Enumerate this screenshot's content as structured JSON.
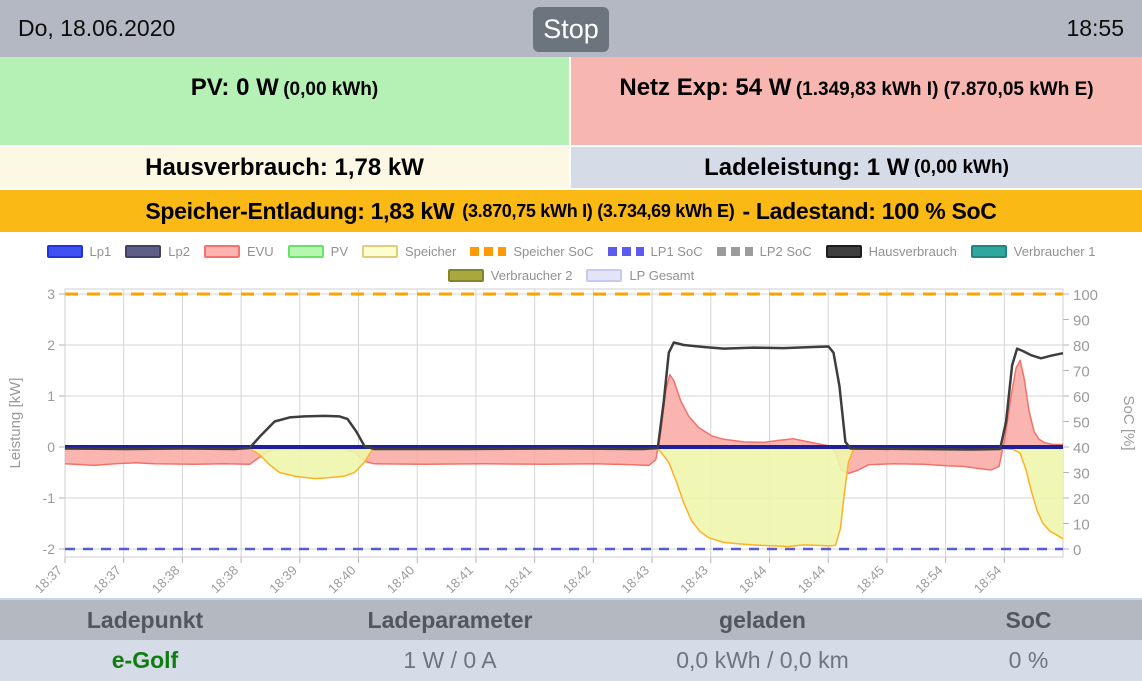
{
  "header": {
    "date": "Do, 18.06.2020",
    "time": "18:55",
    "stop_label": "Stop"
  },
  "panels": {
    "pv": {
      "main": "PV: 0 W",
      "sub": "(0,00 kWh)",
      "bg": "#b5f1b4"
    },
    "netz": {
      "main": "Netz Exp: 54 W",
      "sub": "(1.349,83 kWh I) (7.870,05 kWh E)",
      "bg": "#f8b6b1"
    },
    "hausverbrauch": {
      "main": "Hausverbrauch: 1,78 kW",
      "bg": "#fcf8e3"
    },
    "ladeleistung": {
      "main": "Ladeleistung: 1 W",
      "sub": "(0,00 kWh)",
      "bg": "#d6dbe8"
    },
    "speicher": {
      "main": "Speicher-Entladung: 1,83 kW",
      "sub": "(3.870,75 kWh I) (3.734,69 kWh E)",
      "suffix": "- Ladestand: 100 % SoC",
      "bg": "#fbb916"
    }
  },
  "chart_data": {
    "type": "line",
    "title": "",
    "ylabel_left": "Leistung [kW]",
    "ylabel_right": "SoC [%]",
    "ylim_left": [
      -2,
      3
    ],
    "ylim_right": [
      0,
      100
    ],
    "grid": true,
    "yticks_left": [
      3,
      2,
      1,
      0,
      -1,
      -2
    ],
    "yticks_right": [
      100,
      90,
      80,
      70,
      60,
      50,
      40,
      30,
      20,
      10,
      0
    ],
    "x_labels": [
      "18:37",
      "18:37",
      "18:38",
      "18:38",
      "18:39",
      "18:40",
      "18:40",
      "18:41",
      "18:41",
      "18:42",
      "18:43",
      "18:43",
      "18:44",
      "18:44",
      "18:45",
      "18:54",
      "18:54"
    ],
    "legend_rows": [
      [
        {
          "label": "Lp1",
          "style": "box",
          "fill": "#3f51f3",
          "border": "#2433d9"
        },
        {
          "label": "Lp2",
          "style": "box",
          "fill": "#5d5d86",
          "border": "#404066"
        },
        {
          "label": "EVU",
          "style": "box",
          "fill": "#fdb4ae",
          "border": "#f87171"
        },
        {
          "label": "PV",
          "style": "box",
          "fill": "#b6f6b0",
          "border": "#67e467"
        },
        {
          "label": "Speicher",
          "style": "box",
          "fill": "#fdfdd2",
          "border": "#e3cd7a"
        },
        {
          "label": "Speicher SoC",
          "style": "dash",
          "fill": "#ff9a00"
        },
        {
          "label": "LP1 SoC",
          "style": "dash",
          "fill": "#5b5bf0"
        },
        {
          "label": "LP2 SoC",
          "style": "dash",
          "fill": "#9b9b9b"
        },
        {
          "label": "Hausverbrauch",
          "style": "box",
          "fill": "#3f3f3f",
          "border": "#1e1e1e"
        },
        {
          "label": "Verbraucher 1",
          "style": "box",
          "fill": "#30a79e",
          "border": "#1f877f"
        }
      ],
      [
        {
          "label": "Verbraucher 2",
          "style": "box",
          "fill": "#a8a83e",
          "border": "#83832b"
        },
        {
          "label": "LP Gesamt",
          "style": "box",
          "fill": "#e4e4f9",
          "border": "#c9c9f0"
        }
      ]
    ],
    "series": [
      {
        "name": "Speicher SoC",
        "color": "#ffa300",
        "width": 3,
        "dash": "13 9",
        "points": [
          [
            0,
            3
          ],
          [
            1,
            3
          ]
        ]
      },
      {
        "name": "LP1 SoC",
        "color": "#5a5ad2",
        "width": 2.5,
        "dash": "10 8",
        "points": [
          [
            0,
            -2
          ],
          [
            1,
            -2
          ]
        ]
      },
      {
        "name": "EVU",
        "color": "#f4716b",
        "width": 1.5,
        "fill": "#f9a29c",
        "fillOpacity": 0.8,
        "points": [
          [
            0,
            -0.33
          ],
          [
            0.03,
            -0.36
          ],
          [
            0.05,
            -0.33
          ],
          [
            0.07,
            -0.31
          ],
          [
            0.09,
            -0.33
          ],
          [
            0.13,
            -0.34
          ],
          [
            0.16,
            -0.33
          ],
          [
            0.185,
            -0.34
          ],
          [
            0.195,
            -0.2
          ],
          [
            0.205,
            -0.07
          ],
          [
            0.22,
            -0.04
          ],
          [
            0.25,
            -0.05
          ],
          [
            0.28,
            -0.04
          ],
          [
            0.29,
            -0.1
          ],
          [
            0.3,
            -0.28
          ],
          [
            0.31,
            -0.33
          ],
          [
            0.36,
            -0.34
          ],
          [
            0.42,
            -0.33
          ],
          [
            0.48,
            -0.34
          ],
          [
            0.53,
            -0.33
          ],
          [
            0.57,
            -0.35
          ],
          [
            0.585,
            -0.36
          ],
          [
            0.592,
            -0.25
          ],
          [
            0.597,
            0.3
          ],
          [
            0.602,
            1.1
          ],
          [
            0.606,
            1.42
          ],
          [
            0.61,
            1.3
          ],
          [
            0.617,
            0.9
          ],
          [
            0.625,
            0.6
          ],
          [
            0.635,
            0.38
          ],
          [
            0.648,
            0.22
          ],
          [
            0.66,
            0.15
          ],
          [
            0.68,
            0.1
          ],
          [
            0.7,
            0.09
          ],
          [
            0.715,
            0.13
          ],
          [
            0.73,
            0.16
          ],
          [
            0.74,
            0.12
          ],
          [
            0.755,
            0.06
          ],
          [
            0.766,
            0.02
          ],
          [
            0.772,
            -0.1
          ],
          [
            0.778,
            -0.45
          ],
          [
            0.785,
            -0.52
          ],
          [
            0.795,
            -0.45
          ],
          [
            0.805,
            -0.35
          ],
          [
            0.83,
            -0.33
          ],
          [
            0.86,
            -0.34
          ],
          [
            0.885,
            -0.37
          ],
          [
            0.9,
            -0.38
          ],
          [
            0.915,
            -0.42
          ],
          [
            0.928,
            -0.45
          ],
          [
            0.936,
            -0.38
          ],
          [
            0.942,
            0.2
          ],
          [
            0.948,
            1.0
          ],
          [
            0.953,
            1.55
          ],
          [
            0.957,
            1.7
          ],
          [
            0.961,
            1.35
          ],
          [
            0.966,
            0.7
          ],
          [
            0.971,
            0.3
          ],
          [
            0.976,
            0.15
          ],
          [
            0.982,
            0.08
          ],
          [
            0.99,
            0.05
          ],
          [
            1,
            0.05
          ]
        ]
      },
      {
        "name": "Speicher",
        "color": "#ffb125",
        "width": 1.5,
        "fill": "#eef5ac",
        "fillOpacity": 0.9,
        "points": [
          [
            0,
            -0.02
          ],
          [
            0.05,
            -0.03
          ],
          [
            0.1,
            -0.02
          ],
          [
            0.15,
            -0.03
          ],
          [
            0.185,
            -0.03
          ],
          [
            0.195,
            -0.15
          ],
          [
            0.205,
            -0.35
          ],
          [
            0.215,
            -0.5
          ],
          [
            0.23,
            -0.57
          ],
          [
            0.25,
            -0.62
          ],
          [
            0.265,
            -0.6
          ],
          [
            0.28,
            -0.57
          ],
          [
            0.29,
            -0.5
          ],
          [
            0.3,
            -0.3
          ],
          [
            0.308,
            -0.05
          ],
          [
            0.32,
            -0.02
          ],
          [
            0.4,
            -0.03
          ],
          [
            0.5,
            -0.02
          ],
          [
            0.58,
            -0.03
          ],
          [
            0.595,
            -0.05
          ],
          [
            0.605,
            -0.3
          ],
          [
            0.613,
            -0.7
          ],
          [
            0.62,
            -1.1
          ],
          [
            0.628,
            -1.45
          ],
          [
            0.636,
            -1.65
          ],
          [
            0.645,
            -1.78
          ],
          [
            0.66,
            -1.87
          ],
          [
            0.675,
            -1.9
          ],
          [
            0.69,
            -1.92
          ],
          [
            0.71,
            -1.94
          ],
          [
            0.725,
            -1.95
          ],
          [
            0.74,
            -1.92
          ],
          [
            0.755,
            -1.93
          ],
          [
            0.765,
            -1.94
          ],
          [
            0.772,
            -1.93
          ],
          [
            0.777,
            -1.6
          ],
          [
            0.781,
            -0.9
          ],
          [
            0.785,
            -0.3
          ],
          [
            0.79,
            -0.05
          ],
          [
            0.8,
            -0.02
          ],
          [
            0.85,
            -0.03
          ],
          [
            0.9,
            -0.02
          ],
          [
            0.94,
            -0.03
          ],
          [
            0.95,
            -0.05
          ],
          [
            0.957,
            -0.12
          ],
          [
            0.963,
            -0.45
          ],
          [
            0.968,
            -0.85
          ],
          [
            0.974,
            -1.25
          ],
          [
            0.98,
            -1.5
          ],
          [
            0.987,
            -1.65
          ],
          [
            0.994,
            -1.73
          ],
          [
            1,
            -1.8
          ]
        ]
      },
      {
        "name": "Lp1",
        "color": "#1e1e9e",
        "width": 4,
        "points": [
          [
            0,
            0
          ],
          [
            1,
            0
          ]
        ]
      },
      {
        "name": "Hausverbrauch",
        "color": "#3d3d3d",
        "width": 2.5,
        "points": [
          [
            0,
            -0.03
          ],
          [
            0.06,
            -0.04
          ],
          [
            0.12,
            -0.03
          ],
          [
            0.17,
            -0.04
          ],
          [
            0.185,
            -0.02
          ],
          [
            0.195,
            0.2
          ],
          [
            0.21,
            0.5
          ],
          [
            0.225,
            0.58
          ],
          [
            0.24,
            0.6
          ],
          [
            0.26,
            0.61
          ],
          [
            0.275,
            0.6
          ],
          [
            0.283,
            0.55
          ],
          [
            0.292,
            0.3
          ],
          [
            0.3,
            0.02
          ],
          [
            0.31,
            -0.04
          ],
          [
            0.4,
            -0.04
          ],
          [
            0.5,
            -0.03
          ],
          [
            0.58,
            -0.04
          ],
          [
            0.594,
            -0.02
          ],
          [
            0.6,
            0.9
          ],
          [
            0.605,
            1.85
          ],
          [
            0.61,
            2.05
          ],
          [
            0.62,
            2.0
          ],
          [
            0.64,
            1.96
          ],
          [
            0.66,
            1.93
          ],
          [
            0.69,
            1.95
          ],
          [
            0.72,
            1.94
          ],
          [
            0.75,
            1.96
          ],
          [
            0.765,
            1.97
          ],
          [
            0.77,
            1.85
          ],
          [
            0.776,
            1.2
          ],
          [
            0.782,
            0.1
          ],
          [
            0.787,
            -0.03
          ],
          [
            0.85,
            -0.04
          ],
          [
            0.91,
            -0.05
          ],
          [
            0.937,
            -0.04
          ],
          [
            0.943,
            0.5
          ],
          [
            0.949,
            1.6
          ],
          [
            0.954,
            1.93
          ],
          [
            0.96,
            1.88
          ],
          [
            0.968,
            1.8
          ],
          [
            0.978,
            1.74
          ],
          [
            0.988,
            1.79
          ],
          [
            1,
            1.84
          ]
        ]
      }
    ]
  },
  "table": {
    "headers": [
      "Ladepunkt",
      "Ladeparameter",
      "geladen",
      "SoC"
    ],
    "rows": [
      {
        "ladepunkt": "e-Golf",
        "ladeparameter": "1 W / 0 A",
        "geladen": "0,0 kWh / 0,0 km",
        "soc": "0 %"
      }
    ]
  }
}
